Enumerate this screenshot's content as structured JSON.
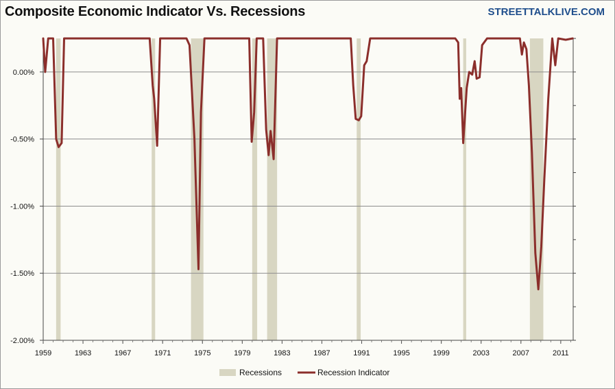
{
  "header": {
    "title": "Composite Economic Indicator Vs. Recessions",
    "brand": "STREETTALKLIVE.COM"
  },
  "colors": {
    "line": "#8b2e2b",
    "recession": "#d8d6c2",
    "grid": "#8c8c8c",
    "background": "#fbfbf6"
  },
  "chart_data": {
    "type": "line",
    "title": "Composite Economic Indicator Vs. Recessions",
    "xlabel": "",
    "ylabel": "",
    "xlim": [
      1959,
      2012.25
    ],
    "ylim": [
      -2.0,
      0.25
    ],
    "grid": true,
    "legend_position": "bottom",
    "x_ticks": [
      "1959",
      "1963",
      "1967",
      "1971",
      "1975",
      "1979",
      "1983",
      "1987",
      "1991",
      "1995",
      "1999",
      "2003",
      "2007",
      "2011"
    ],
    "y_ticks": [
      "0.00%",
      "-0.50%",
      "-1.00%",
      "-1.50%",
      "-2.00%"
    ],
    "y_tick_values": [
      0.0,
      -0.5,
      -1.0,
      -1.5,
      -2.0
    ],
    "recessions": {
      "name": "Recessions",
      "periods": [
        [
          1960.3,
          1960.75
        ],
        [
          1969.9,
          1970.25
        ],
        [
          1973.85,
          1975.1
        ],
        [
          1980.0,
          1980.5
        ],
        [
          1981.5,
          1982.5
        ],
        [
          1990.5,
          1990.9
        ],
        [
          2001.2,
          2001.5
        ],
        [
          2007.9,
          2009.25
        ]
      ]
    },
    "series": [
      {
        "name": "Recession Indicator",
        "points": [
          [
            1959.0,
            0.25
          ],
          [
            1959.2,
            0.0
          ],
          [
            1959.5,
            0.25
          ],
          [
            1960.0,
            0.25
          ],
          [
            1960.3,
            -0.5
          ],
          [
            1960.55,
            -0.56
          ],
          [
            1960.85,
            -0.53
          ],
          [
            1961.1,
            0.25
          ],
          [
            1969.7,
            0.25
          ],
          [
            1970.0,
            -0.1
          ],
          [
            1970.15,
            -0.2
          ],
          [
            1970.45,
            -0.55
          ],
          [
            1970.75,
            0.25
          ],
          [
            1973.4,
            0.25
          ],
          [
            1973.7,
            0.2
          ],
          [
            1974.2,
            -0.5
          ],
          [
            1974.6,
            -1.47
          ],
          [
            1974.85,
            -0.3
          ],
          [
            1975.2,
            0.25
          ],
          [
            1979.7,
            0.25
          ],
          [
            1979.95,
            -0.52
          ],
          [
            1980.2,
            -0.3
          ],
          [
            1980.45,
            0.25
          ],
          [
            1981.1,
            0.25
          ],
          [
            1981.4,
            -0.43
          ],
          [
            1981.65,
            -0.62
          ],
          [
            1981.85,
            -0.44
          ],
          [
            1982.15,
            -0.65
          ],
          [
            1982.5,
            0.25
          ],
          [
            1989.9,
            0.25
          ],
          [
            1990.15,
            -0.1
          ],
          [
            1990.4,
            -0.35
          ],
          [
            1990.7,
            -0.36
          ],
          [
            1990.95,
            -0.33
          ],
          [
            1991.25,
            0.05
          ],
          [
            1991.5,
            0.08
          ],
          [
            1991.85,
            0.25
          ],
          [
            2000.4,
            0.25
          ],
          [
            2000.7,
            0.22
          ],
          [
            2000.85,
            -0.2
          ],
          [
            2001.0,
            -0.12
          ],
          [
            2001.2,
            -0.53
          ],
          [
            2001.55,
            -0.12
          ],
          [
            2001.8,
            0.0
          ],
          [
            2002.1,
            -0.02
          ],
          [
            2002.35,
            0.08
          ],
          [
            2002.55,
            -0.05
          ],
          [
            2002.85,
            -0.04
          ],
          [
            2003.1,
            0.2
          ],
          [
            2003.6,
            0.25
          ],
          [
            2006.9,
            0.25
          ],
          [
            2007.1,
            0.13
          ],
          [
            2007.3,
            0.22
          ],
          [
            2007.55,
            0.17
          ],
          [
            2007.8,
            -0.1
          ],
          [
            2008.1,
            -0.6
          ],
          [
            2008.45,
            -1.35
          ],
          [
            2008.75,
            -1.62
          ],
          [
            2009.05,
            -1.3
          ],
          [
            2009.35,
            -0.8
          ],
          [
            2009.75,
            -0.2
          ],
          [
            2010.15,
            0.25
          ],
          [
            2010.45,
            0.05
          ],
          [
            2010.75,
            0.25
          ],
          [
            2011.5,
            0.24
          ],
          [
            2012.2,
            0.25
          ]
        ]
      }
    ],
    "legend": [
      "Recessions",
      "Recession Indicator"
    ]
  }
}
